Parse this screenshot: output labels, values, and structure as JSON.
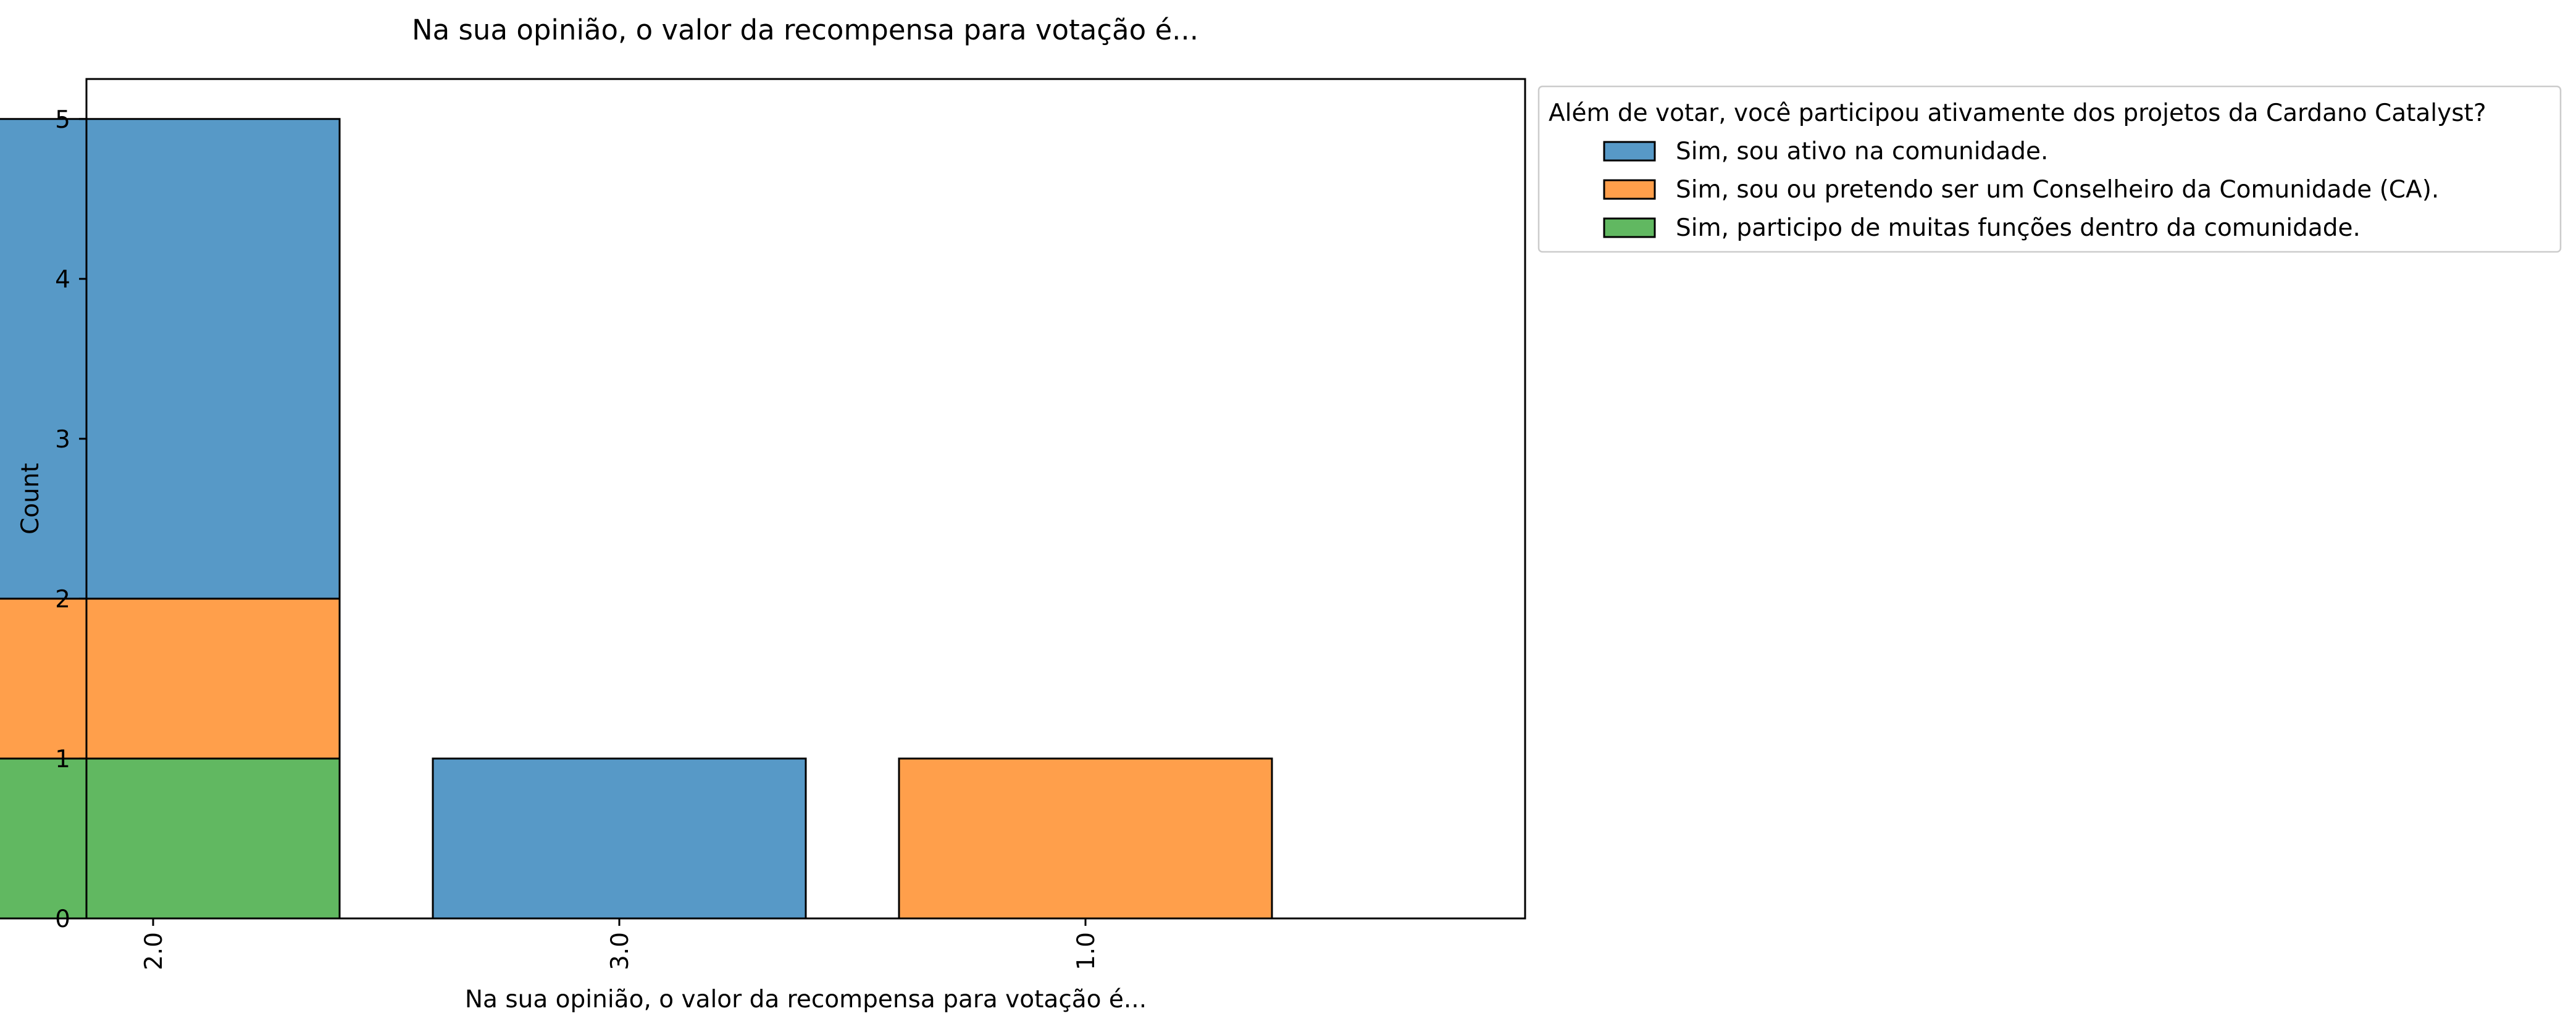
{
  "chart_data": {
    "type": "bar",
    "stacked": true,
    "title": "Na sua opinião, o valor da recompensa para votação é...",
    "xlabel": "Na sua opinião, o valor da recompensa para votação é...",
    "ylabel": "Count",
    "categories": [
      "2.0",
      "3.0",
      "1.0"
    ],
    "ylim": [
      0,
      5.25
    ],
    "yticks": [
      "0",
      "1",
      "2",
      "3",
      "4",
      "5"
    ],
    "grid": false,
    "legend": {
      "title": "Além de votar, você participou ativamente dos projetos da Cardano Catalyst?",
      "placement": "outside-top-right"
    },
    "series": [
      {
        "name": "Sim, sou ativo na comunidade.",
        "color": "#5799c7",
        "values": [
          3,
          1,
          0
        ]
      },
      {
        "name": "Sim, sou ou pretendo ser um Conselheiro da Comunidade (CA).",
        "color": "#ff9f4b",
        "values": [
          1,
          0,
          1
        ]
      },
      {
        "name": "Sim, participo de muitas funções dentro da comunidade.",
        "color": "#61b861",
        "values": [
          1,
          0,
          0
        ]
      }
    ],
    "stack_order": [
      2,
      1,
      0
    ]
  }
}
